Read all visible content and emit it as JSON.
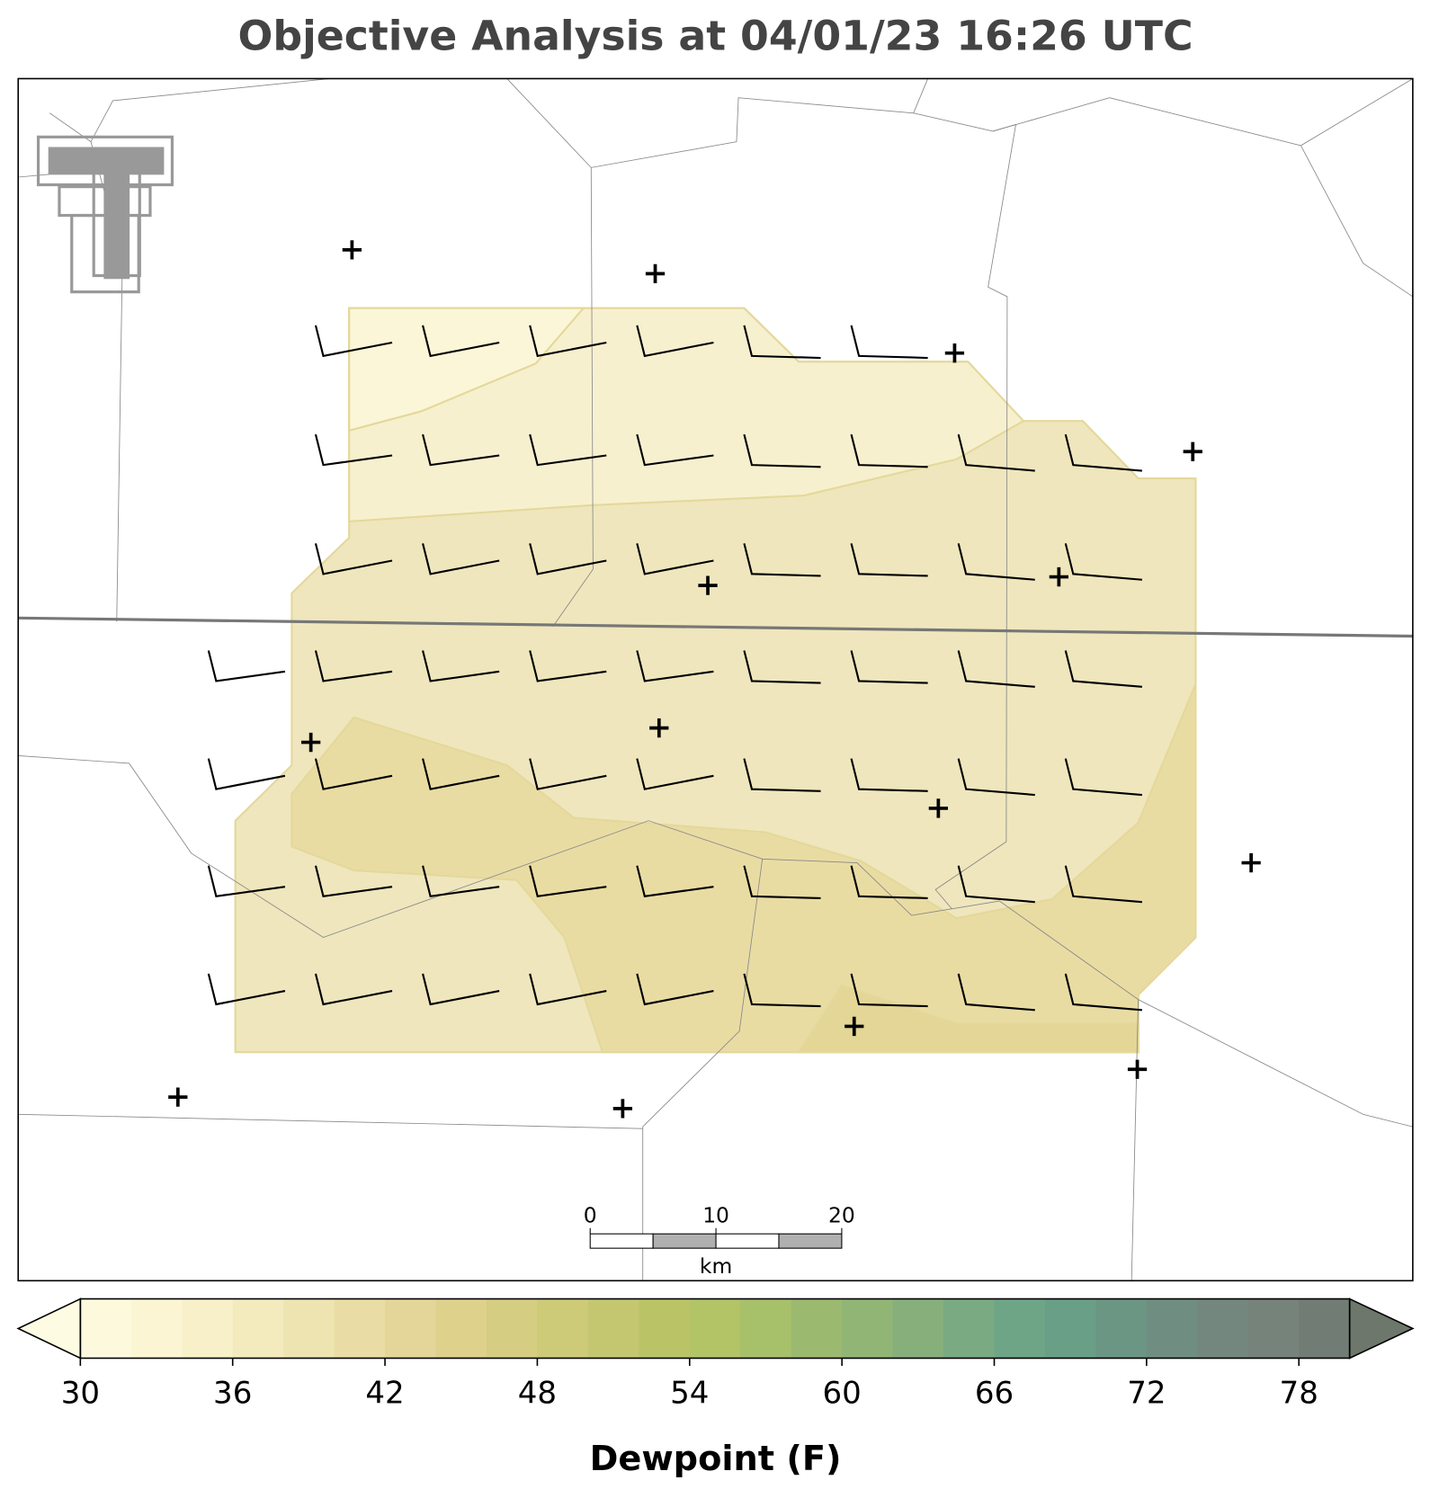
{
  "title": "Objective Analysis at 04/01/23 16:26 UTC",
  "colorbar": {
    "label": "Dewpoint (F)",
    "lim": [
      30,
      80
    ],
    "ticks": [
      30,
      36,
      42,
      48,
      54,
      60,
      66,
      72,
      78
    ],
    "colors": [
      "#fdf9dc",
      "#fbf5d4",
      "#f7f0c9",
      "#f3eabe",
      "#eee4b2",
      "#e9dda5",
      "#e3d698",
      "#ddd18c",
      "#d5cd81",
      "#cdca78",
      "#c4c76f",
      "#bac467",
      "#b2c466",
      "#a7c06a",
      "#9cba6f",
      "#91b574",
      "#86af7b",
      "#7aaa82",
      "#6fa587",
      "#699e87",
      "#6b9684",
      "#6f8e81",
      "#74877e",
      "#75837a",
      "#717d74"
    ],
    "extend_colors": [
      "#fdfbe2",
      "#6d776b"
    ]
  },
  "scale_bar": {
    "lim": [
      0,
      20
    ],
    "ticks": [
      0,
      10,
      20
    ],
    "unit": "km"
  }
}
